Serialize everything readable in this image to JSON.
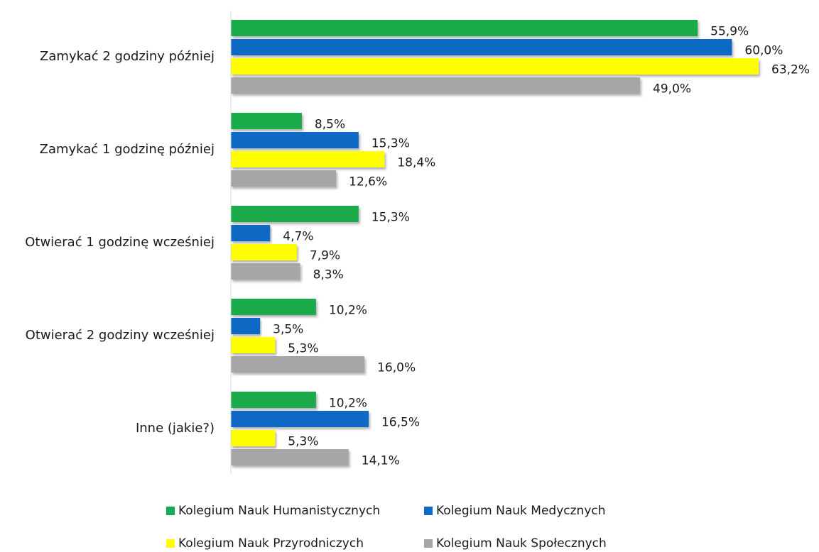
{
  "chart_data": {
    "type": "bar",
    "orientation": "horizontal",
    "categories": [
      "Zamykać 2 godziny później",
      "Zamykać 1 godzinę później",
      "Otwierać 1 godzinę wcześniej",
      "Otwierać 2 godziny wcześniej",
      "Inne (jakie?)"
    ],
    "series": [
      {
        "name": "Kolegium Nauk Humanistycznych",
        "color": "#1aab4b",
        "values": [
          55.9,
          8.5,
          15.3,
          10.2,
          10.2
        ],
        "value_labels": [
          "55,9%",
          "8,5%",
          "15,3%",
          "10,2%",
          "10,2%"
        ]
      },
      {
        "name": "Kolegium Nauk Medycznych",
        "color": "#1169c4",
        "values": [
          60.0,
          15.3,
          4.7,
          3.5,
          16.5
        ],
        "value_labels": [
          "60,0%",
          "15,3%",
          "4,7%",
          "3,5%",
          "16,5%"
        ]
      },
      {
        "name": "Kolegium Nauk Przyrodniczych",
        "color": "#ffff00",
        "values": [
          63.2,
          18.4,
          7.9,
          5.3,
          5.3
        ],
        "value_labels": [
          "63,2%",
          "18,4%",
          "7,9%",
          "5,3%",
          "5,3%"
        ]
      },
      {
        "name": "Kolegium Nauk Społecznych",
        "color": "#a6a6a6",
        "values": [
          49.0,
          12.6,
          8.3,
          16.0,
          14.1
        ],
        "value_labels": [
          "49,0%",
          "12,6%",
          "8,3%",
          "16,0%",
          "14,1%"
        ]
      }
    ],
    "legend": "bottom"
  }
}
